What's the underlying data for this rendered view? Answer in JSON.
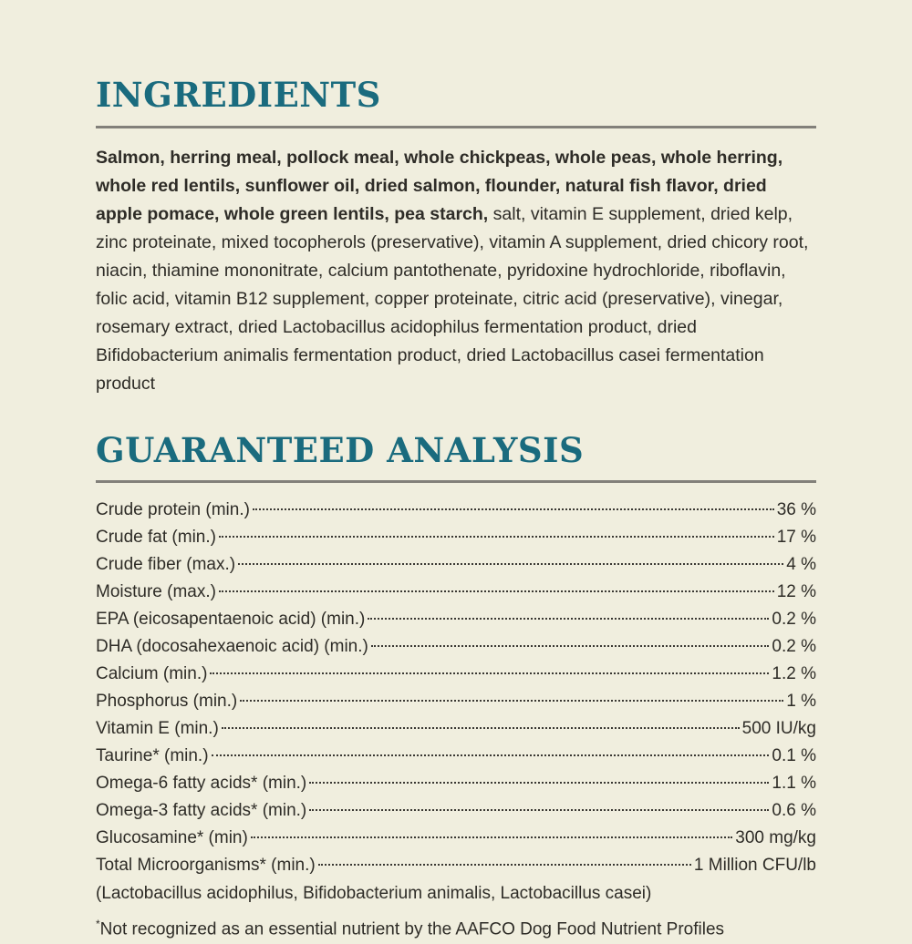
{
  "colors": {
    "background": "#F0EEDE",
    "heading_teal": "#1A6B7E",
    "rule_gray": "#82807A",
    "body_text": "#2E2C27"
  },
  "ingredients": {
    "title": "INGREDIENTS",
    "bold_text": "Salmon, herring meal, pollock meal, whole chickpeas, whole peas, whole herring, whole red lentils, sunflower oil, dried salmon, flounder, natural fish flavor, dried apple pomace, whole green lentils, pea starch,",
    "regular_text": " salt, vitamin E supplement, dried kelp, zinc proteinate, mixed tocopherols (preservative), vitamin A supplement, dried chicory root, niacin, thiamine mononitrate, calcium pantothenate, pyridoxine hydrochloride, riboflavin, folic acid, vitamin B12 supplement, copper proteinate, citric acid (preservative), vinegar, rosemary extract, dried Lactobacillus acidophilus fermentation product, dried Bifidobacterium animalis fermentation product, dried Lactobacillus casei fermentation product"
  },
  "guaranteed_analysis": {
    "title": "GUARANTEED ANALYSIS",
    "rows": [
      {
        "label": "Crude protein (min.)",
        "value": "36 %"
      },
      {
        "label": "Crude fat (min.)",
        "value": "17 %"
      },
      {
        "label": "Crude fiber (max.)",
        "value": "4 %"
      },
      {
        "label": "Moisture (max.)",
        "value": "12 %"
      },
      {
        "label": "EPA (eicosapentaenoic acid) (min.)",
        "value": "0.2 %"
      },
      {
        "label": "DHA (docosahexaenoic acid) (min.)",
        "value": "0.2 %"
      },
      {
        "label": "Calcium (min.)",
        "value": "1.2 %"
      },
      {
        "label": "Phosphorus (min.)",
        "value": "1 %"
      },
      {
        "label": "Vitamin E (min.)",
        "value": "500 IU/kg"
      },
      {
        "label": "Taurine* (min.)",
        "value": "0.1 %"
      },
      {
        "label": "Omega-6 fatty acids* (min.)",
        "value": "1.1 %"
      },
      {
        "label": "Omega-3 fatty acids* (min.)",
        "value": "0.6 %"
      },
      {
        "label": "Glucosamine* (min)",
        "value": "300 mg/kg"
      },
      {
        "label": "Total Microorganisms* (min.)",
        "value": "1 Million CFU/lb"
      }
    ],
    "microorganisms_detail": "(Lactobacillus acidophilus, Bifidobacterium animalis, Lactobacillus casei)",
    "footnote_asterisk": "*",
    "footnote_text": "Not recognized as an essential nutrient by the AAFCO Dog Food Nutrient Profiles"
  }
}
